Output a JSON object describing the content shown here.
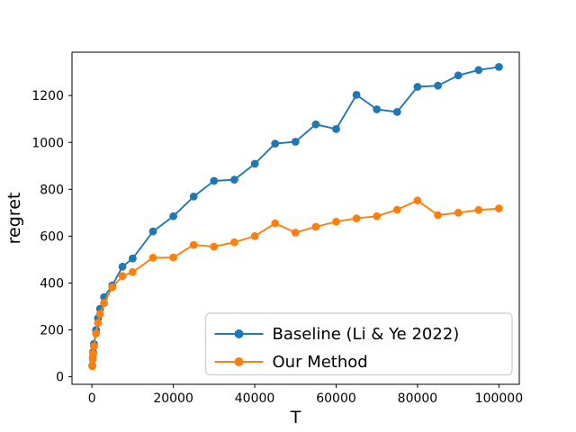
{
  "figure": {
    "background": "#ffffff",
    "spine_color": "#000000"
  },
  "chart_data": {
    "type": "line",
    "title": "",
    "xlabel": "T",
    "ylabel": "regret",
    "x": [
      100,
      200,
      300,
      500,
      1000,
      1500,
      2000,
      3000,
      5000,
      7500,
      10000,
      15000,
      20000,
      25000,
      30000,
      35000,
      40000,
      45000,
      50000,
      55000,
      60000,
      65000,
      70000,
      75000,
      80000,
      85000,
      90000,
      95000,
      100000
    ],
    "series": [
      {
        "name": "Baseline (Li & Ye 2022)",
        "color": "#1f77b4",
        "marker": "circle",
        "values": [
          48,
          80,
          105,
          140,
          200,
          250,
          290,
          340,
          390,
          470,
          505,
          620,
          685,
          769,
          836,
          841,
          909,
          995,
          1003,
          1077,
          1057,
          1203,
          1141,
          1130,
          1237,
          1242,
          1286,
          1309,
          1322
        ]
      },
      {
        "name": "Our Method",
        "color": "#ff7f0e",
        "marker": "circle",
        "values": [
          45,
          75,
          98,
          130,
          185,
          230,
          268,
          315,
          382,
          430,
          447,
          508,
          509,
          563,
          555,
          574,
          600,
          655,
          615,
          640,
          662,
          676,
          685,
          713,
          752,
          690,
          700,
          712,
          718
        ]
      }
    ],
    "xlim": [
      -4900,
      105000
    ],
    "ylim": [
      -32,
      1385
    ],
    "x_ticks": [
      0,
      20000,
      40000,
      60000,
      80000,
      100000
    ],
    "x_tick_labels": [
      "0",
      "20000",
      "40000",
      "60000",
      "80000",
      "100000"
    ],
    "y_ticks": [
      0,
      200,
      400,
      600,
      800,
      1000,
      1200
    ],
    "y_tick_labels": [
      "0",
      "200",
      "400",
      "600",
      "800",
      "1000",
      "1200"
    ],
    "grid": false,
    "legend": {
      "position": "lower right",
      "entries": [
        "Baseline (Li & Ye 2022)",
        "Our Method"
      ]
    }
  }
}
